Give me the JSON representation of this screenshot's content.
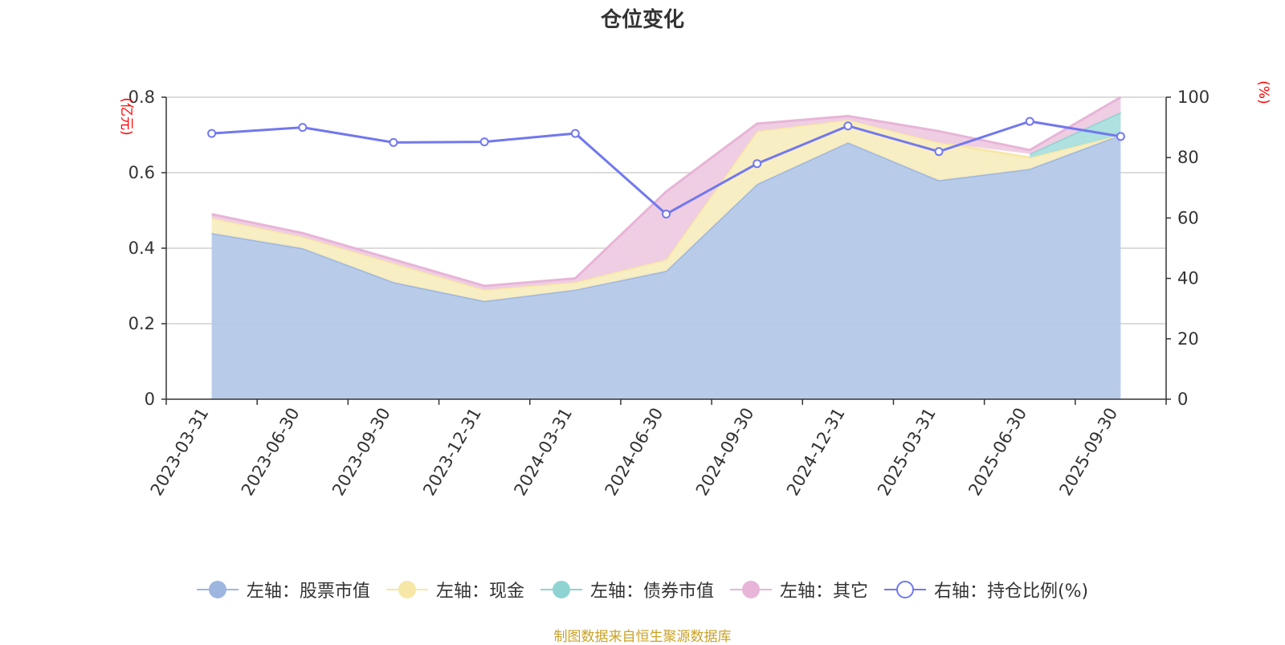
{
  "chart_data": {
    "type": "area",
    "title": "仓位变化",
    "categories": [
      "2023-03-31",
      "2023-06-30",
      "2023-09-30",
      "2023-12-31",
      "2024-03-31",
      "2024-06-30",
      "2024-09-30",
      "2024-12-31",
      "2025-03-31",
      "2025-06-30",
      "2025-09-30"
    ],
    "left_axis": {
      "unit": "(亿元)",
      "ylim": [
        0,
        0.8
      ],
      "ticks": [
        "0",
        "0.2",
        "0.4",
        "0.6",
        "0.8"
      ],
      "tick_values": [
        0,
        0.2,
        0.4,
        0.6,
        0.8
      ]
    },
    "right_axis": {
      "unit": "(%)",
      "ylim": [
        0,
        100
      ],
      "ticks": [
        "0",
        "20",
        "40",
        "60",
        "80",
        "100"
      ],
      "tick_values": [
        0,
        20,
        40,
        60,
        80,
        100
      ]
    },
    "series": [
      {
        "name": "左轴：股票市值",
        "axis": "left",
        "stack": true,
        "color": "#9db6e0",
        "fill": "#b4c9e9",
        "values": [
          0.44,
          0.4,
          0.31,
          0.26,
          0.29,
          0.34,
          0.57,
          0.68,
          0.58,
          0.61,
          0.7
        ]
      },
      {
        "name": "左轴：现金",
        "axis": "left",
        "stack": true,
        "color": "#f7e7a6",
        "fill": "#f8edc0",
        "values": [
          0.04,
          0.03,
          0.05,
          0.03,
          0.02,
          0.03,
          0.14,
          0.06,
          0.1,
          0.03,
          0.0
        ]
      },
      {
        "name": "左轴：债券市值",
        "axis": "left",
        "stack": true,
        "color": "#8fd3d3",
        "fill": "#aadfdd",
        "values": [
          null,
          null,
          null,
          null,
          null,
          null,
          null,
          null,
          null,
          0.01,
          0.06
        ]
      },
      {
        "name": "左轴：其它",
        "axis": "left",
        "stack": true,
        "color": "#e8b4d8",
        "fill": "#eecbe2",
        "values": [
          0.01,
          0.01,
          0.01,
          0.01,
          0.01,
          0.18,
          0.02,
          0.01,
          0.03,
          0.01,
          0.04
        ]
      },
      {
        "name": "右轴：持仓比例(%)",
        "axis": "right",
        "type": "line",
        "color": "#7278ee",
        "values": [
          88,
          90,
          85,
          85.2,
          88,
          61.3,
          78,
          90.5,
          82,
          92,
          87
        ]
      }
    ]
  },
  "legend": [
    {
      "label": "左轴：股票市值",
      "color": "#9db6e0",
      "marker": "filled"
    },
    {
      "label": "左轴：现金",
      "color": "#f7e7a6",
      "marker": "filled"
    },
    {
      "label": "左轴：债券市值",
      "color": "#8fd3d3",
      "marker": "filled"
    },
    {
      "label": "左轴：其它",
      "color": "#e8b4d8",
      "marker": "filled"
    },
    {
      "label": "右轴：持仓比例(%)",
      "color": "#7278ee",
      "marker": "hollow"
    }
  ],
  "footer": {
    "source_note": "制图数据来自恒生聚源数据库"
  }
}
